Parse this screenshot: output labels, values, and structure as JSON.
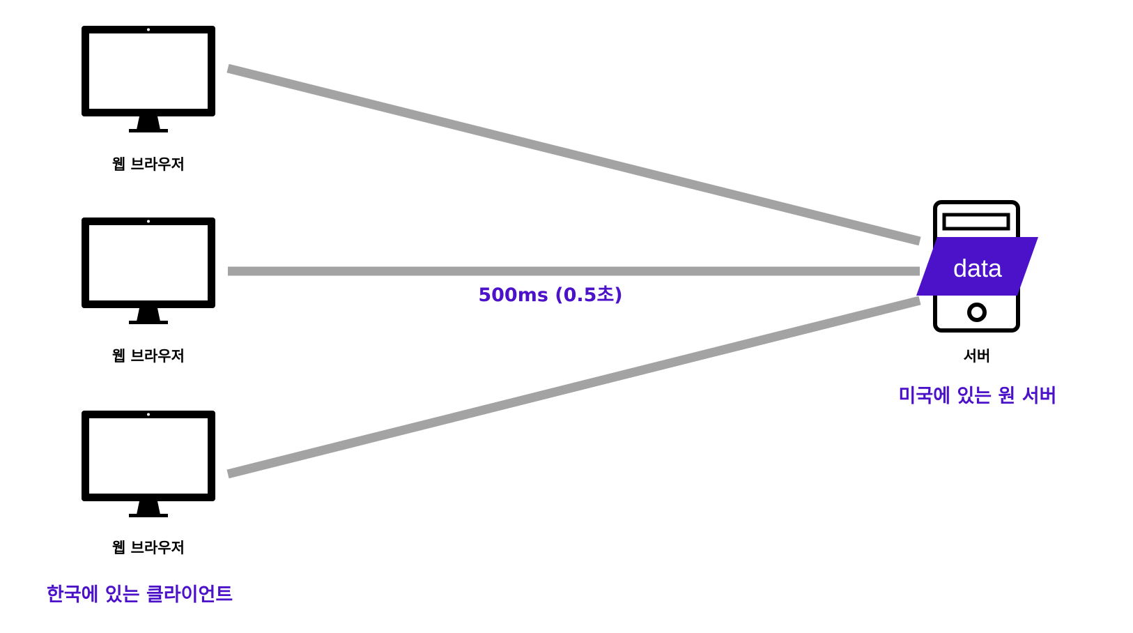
{
  "colors": {
    "accent": "#4c12c9",
    "line": "#a3a3a3",
    "icon": "#000000",
    "background": "#ffffff"
  },
  "clients": [
    {
      "label": "웹 브라우저",
      "icon": "monitor-icon"
    },
    {
      "label": "웹 브라우저",
      "icon": "monitor-icon"
    },
    {
      "label": "웹 브라우저",
      "icon": "monitor-icon"
    }
  ],
  "client_group_label": "한국에 있는 클라이언트",
  "latency_label": "500ms (0.5초)",
  "server": {
    "label": "서버",
    "icon": "server-tower-icon",
    "data_label": "data",
    "caption": "미국에 있는 원 서버"
  }
}
